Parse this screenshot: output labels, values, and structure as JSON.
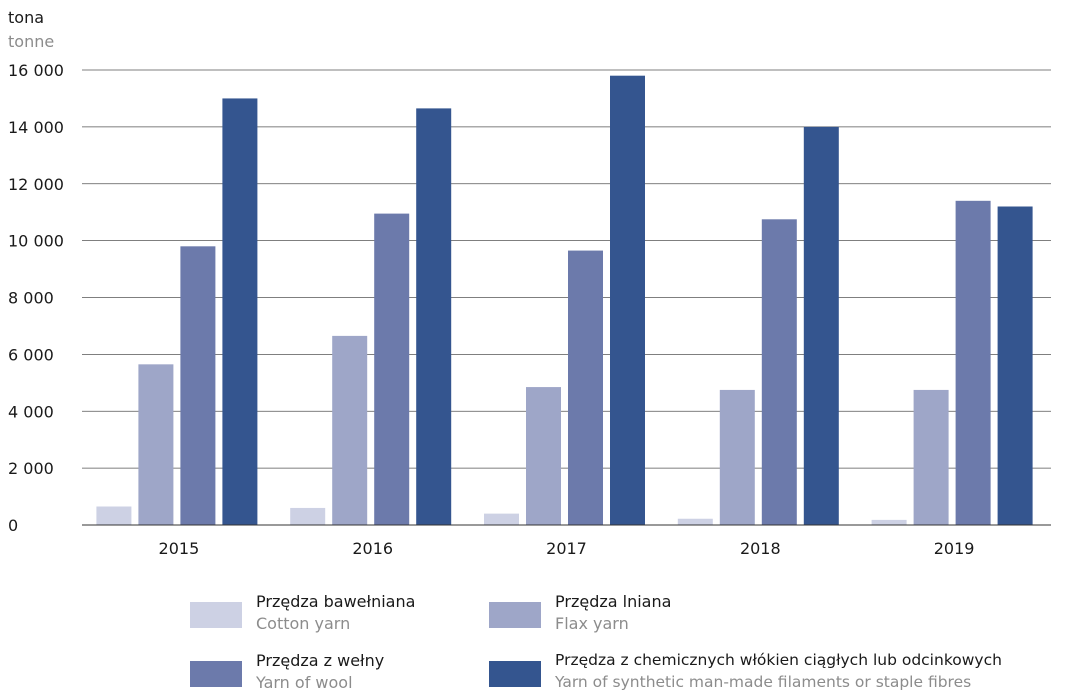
{
  "unit": {
    "pl": "tona",
    "en": "tonne"
  },
  "chart_data": {
    "type": "bar",
    "categories": [
      "2015",
      "2016",
      "2017",
      "2018",
      "2019"
    ],
    "ylim": [
      0,
      16000
    ],
    "yticks": [
      0,
      2000,
      4000,
      6000,
      8000,
      10000,
      12000,
      14000,
      16000
    ],
    "ytick_labels": [
      "0",
      "2 000",
      "4 000",
      "6 000",
      "8 000",
      "10 000",
      "12 000",
      "14 000",
      "16 000"
    ],
    "grid": true,
    "legend_position": "bottom",
    "series": [
      {
        "name": "Przędza bawełniana",
        "name_en": "Cotton yarn",
        "color": "#cdd1e4",
        "values": [
          650,
          600,
          400,
          220,
          180
        ]
      },
      {
        "name": "Przędza lniana",
        "name_en": "Flax yarn",
        "color": "#9ea6c8",
        "values": [
          5650,
          6650,
          4850,
          4750,
          4750
        ]
      },
      {
        "name": "Przędza z wełny",
        "name_en": "Yarn of wool",
        "color": "#6c7aab",
        "values": [
          9800,
          10950,
          9650,
          10750,
          11400
        ]
      },
      {
        "name": "Przędza z chemicznych włókien ciągłych lub odcinkowych",
        "name_en": "Yarn of synthetic man-made filaments or staple fibres",
        "color": "#34558f",
        "values": [
          15000,
          14650,
          15800,
          14000,
          11200
        ]
      }
    ]
  }
}
